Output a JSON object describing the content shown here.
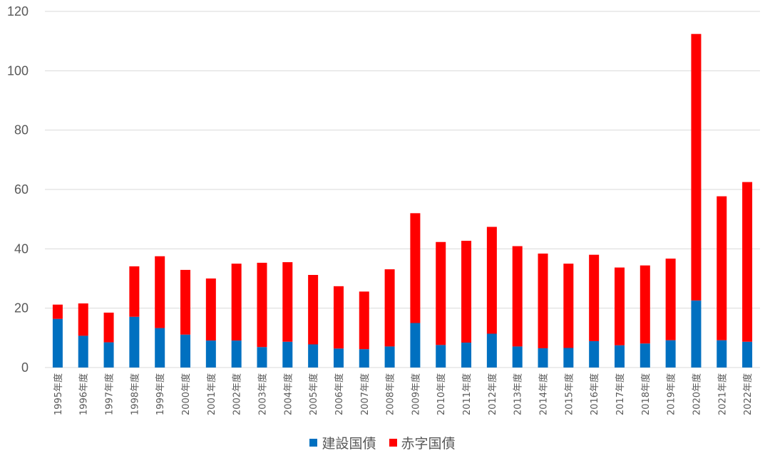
{
  "chart_data": {
    "type": "bar",
    "stacked": true,
    "title": "",
    "xlabel": "",
    "ylabel": "",
    "ylim": [
      0,
      120
    ],
    "yticks": [
      "0",
      "20",
      "40",
      "60",
      "80",
      "100",
      "120"
    ],
    "grid": true,
    "legend_position": "bottom",
    "categories": [
      "1995年度",
      "1996年度",
      "1997年度",
      "1998年度",
      "1999年度",
      "2000年度",
      "2001年度",
      "2002年度",
      "2003年度",
      "2004年度",
      "2005年度",
      "2006年度",
      "2007年度",
      "2008年度",
      "2009年度",
      "2010年度",
      "2011年度",
      "2012年度",
      "2013年度",
      "2014年度",
      "2015年度",
      "2016年度",
      "2017年度",
      "2018年度",
      "2019年度",
      "2020年度",
      "2021年度",
      "2022年度"
    ],
    "series": [
      {
        "name": "建設国債",
        "color": "#0070C0",
        "values": [
          16.4,
          10.7,
          8.5,
          17.1,
          13.3,
          11.1,
          9.1,
          9.1,
          6.9,
          8.7,
          7.8,
          6.4,
          6.2,
          7.1,
          15.0,
          7.6,
          8.4,
          11.4,
          7.1,
          6.5,
          6.6,
          8.9,
          7.5,
          8.1,
          9.2,
          22.6,
          9.2,
          8.7
        ]
      },
      {
        "name": "赤字国債",
        "color": "#FF0000",
        "values": [
          4.8,
          10.9,
          10.0,
          17.0,
          24.2,
          21.8,
          20.9,
          25.9,
          28.4,
          26.8,
          23.4,
          21.0,
          19.4,
          26.0,
          37.0,
          34.7,
          34.3,
          36.0,
          33.8,
          31.9,
          28.4,
          29.1,
          26.2,
          26.3,
          27.5,
          89.8,
          48.5,
          53.8
        ]
      }
    ]
  }
}
